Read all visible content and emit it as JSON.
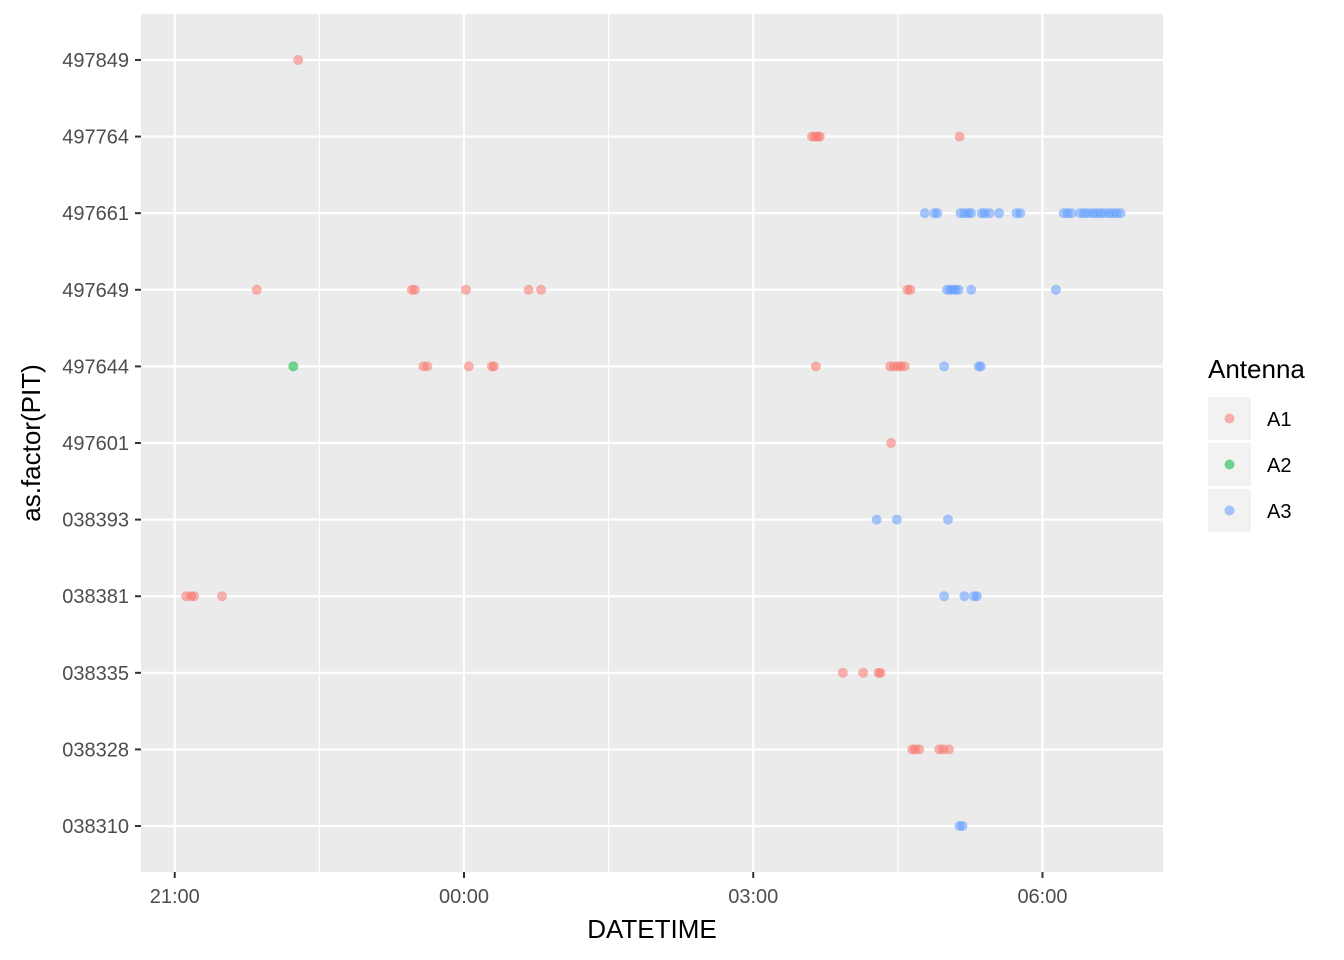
{
  "chart_data": {
    "type": "scatter",
    "xlabel": "DATETIME",
    "ylabel": "as.factor(PIT)",
    "x_unit": "time of day (hours after 21:00)",
    "x_ticks": [
      {
        "value": 0,
        "label": "21:00"
      },
      {
        "value": 3,
        "label": "00:00"
      },
      {
        "value": 6,
        "label": "03:00"
      },
      {
        "value": 9,
        "label": "06:00"
      }
    ],
    "xlim": [
      -0.35,
      10.25
    ],
    "categories": [
      "038310",
      "038328",
      "038335",
      "038381",
      "038393",
      "497601",
      "497644",
      "497649",
      "497661",
      "497764",
      "497849"
    ],
    "grid": true,
    "background": "#ebebeb",
    "point_alpha": 0.55,
    "legend": {
      "title": "Antenna",
      "position": "right"
    },
    "series": [
      {
        "name": "A1",
        "color": "#f8766d",
        "points": [
          {
            "x": 1.28,
            "y": "497849"
          },
          {
            "x": 6.61,
            "y": "497764"
          },
          {
            "x": 6.64,
            "y": "497764"
          },
          {
            "x": 6.67,
            "y": "497764"
          },
          {
            "x": 6.69,
            "y": "497764"
          },
          {
            "x": 8.14,
            "y": "497764"
          },
          {
            "x": 0.85,
            "y": "497649"
          },
          {
            "x": 2.46,
            "y": "497649"
          },
          {
            "x": 2.49,
            "y": "497649"
          },
          {
            "x": 3.02,
            "y": "497649"
          },
          {
            "x": 3.67,
            "y": "497649"
          },
          {
            "x": 3.8,
            "y": "497649"
          },
          {
            "x": 7.6,
            "y": "497649"
          },
          {
            "x": 7.63,
            "y": "497649"
          },
          {
            "x": 2.58,
            "y": "497644"
          },
          {
            "x": 2.62,
            "y": "497644"
          },
          {
            "x": 3.05,
            "y": "497644"
          },
          {
            "x": 3.29,
            "y": "497644"
          },
          {
            "x": 3.31,
            "y": "497644"
          },
          {
            "x": 6.65,
            "y": "497644"
          },
          {
            "x": 7.42,
            "y": "497644"
          },
          {
            "x": 7.46,
            "y": "497644"
          },
          {
            "x": 7.5,
            "y": "497644"
          },
          {
            "x": 7.53,
            "y": "497644"
          },
          {
            "x": 7.57,
            "y": "497644"
          },
          {
            "x": 7.43,
            "y": "497601"
          },
          {
            "x": 0.12,
            "y": "038381"
          },
          {
            "x": 0.17,
            "y": "038381"
          },
          {
            "x": 0.2,
            "y": "038381"
          },
          {
            "x": 0.49,
            "y": "038381"
          },
          {
            "x": 6.93,
            "y": "038335"
          },
          {
            "x": 7.14,
            "y": "038335"
          },
          {
            "x": 7.3,
            "y": "038335"
          },
          {
            "x": 7.32,
            "y": "038335"
          },
          {
            "x": 7.65,
            "y": "038328"
          },
          {
            "x": 7.68,
            "y": "038328"
          },
          {
            "x": 7.72,
            "y": "038328"
          },
          {
            "x": 7.93,
            "y": "038328"
          },
          {
            "x": 7.97,
            "y": "038328"
          },
          {
            "x": 8.03,
            "y": "038328"
          }
        ]
      },
      {
        "name": "A2",
        "color": "#00ba38",
        "points": [
          {
            "x": 1.23,
            "y": "497644"
          }
        ]
      },
      {
        "name": "A3",
        "color": "#619cff",
        "points": [
          {
            "x": 7.78,
            "y": "497661"
          },
          {
            "x": 7.88,
            "y": "497661"
          },
          {
            "x": 7.91,
            "y": "497661"
          },
          {
            "x": 8.15,
            "y": "497661"
          },
          {
            "x": 8.19,
            "y": "497661"
          },
          {
            "x": 8.23,
            "y": "497661"
          },
          {
            "x": 8.26,
            "y": "497661"
          },
          {
            "x": 8.37,
            "y": "497661"
          },
          {
            "x": 8.4,
            "y": "497661"
          },
          {
            "x": 8.45,
            "y": "497661"
          },
          {
            "x": 8.55,
            "y": "497661"
          },
          {
            "x": 8.73,
            "y": "497661"
          },
          {
            "x": 8.77,
            "y": "497661"
          },
          {
            "x": 9.22,
            "y": "497661"
          },
          {
            "x": 9.26,
            "y": "497661"
          },
          {
            "x": 9.3,
            "y": "497661"
          },
          {
            "x": 9.39,
            "y": "497661"
          },
          {
            "x": 9.43,
            "y": "497661"
          },
          {
            "x": 9.47,
            "y": "497661"
          },
          {
            "x": 9.52,
            "y": "497661"
          },
          {
            "x": 9.56,
            "y": "497661"
          },
          {
            "x": 9.6,
            "y": "497661"
          },
          {
            "x": 9.64,
            "y": "497661"
          },
          {
            "x": 9.69,
            "y": "497661"
          },
          {
            "x": 9.73,
            "y": "497661"
          },
          {
            "x": 9.77,
            "y": "497661"
          },
          {
            "x": 9.81,
            "y": "497661"
          },
          {
            "x": 8.01,
            "y": "497649"
          },
          {
            "x": 8.04,
            "y": "497649"
          },
          {
            "x": 8.07,
            "y": "497649"
          },
          {
            "x": 8.1,
            "y": "497649"
          },
          {
            "x": 8.13,
            "y": "497649"
          },
          {
            "x": 8.26,
            "y": "497649"
          },
          {
            "x": 9.14,
            "y": "497649"
          },
          {
            "x": 7.98,
            "y": "497644"
          },
          {
            "x": 8.34,
            "y": "497644"
          },
          {
            "x": 8.36,
            "y": "497644"
          },
          {
            "x": 7.28,
            "y": "038393"
          },
          {
            "x": 7.49,
            "y": "038393"
          },
          {
            "x": 8.02,
            "y": "038393"
          },
          {
            "x": 7.98,
            "y": "038381"
          },
          {
            "x": 8.19,
            "y": "038381"
          },
          {
            "x": 8.29,
            "y": "038381"
          },
          {
            "x": 8.32,
            "y": "038381"
          },
          {
            "x": 8.14,
            "y": "038310"
          },
          {
            "x": 8.17,
            "y": "038310"
          }
        ]
      }
    ]
  }
}
